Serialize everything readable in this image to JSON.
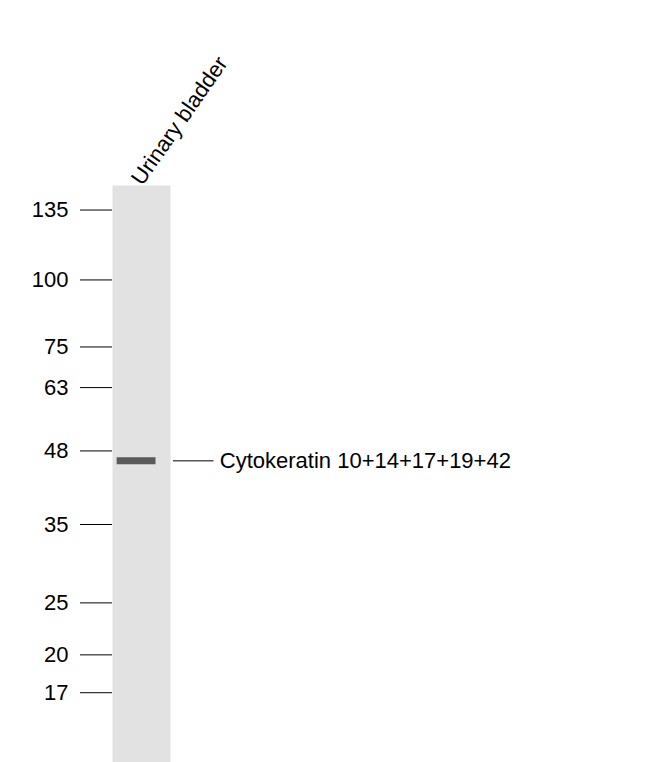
{
  "chart_data": {
    "type": "western_blot",
    "log": "y",
    "categories": [
      "Urinary bladder"
    ],
    "values": [
      46
    ],
    "band_label": "Cytokeratin 10+14+17+19+42",
    "ylim": [
      12.6,
      150
    ],
    "yticks": [
      135,
      100,
      75,
      63,
      48,
      35,
      25,
      20,
      17
    ]
  }
}
